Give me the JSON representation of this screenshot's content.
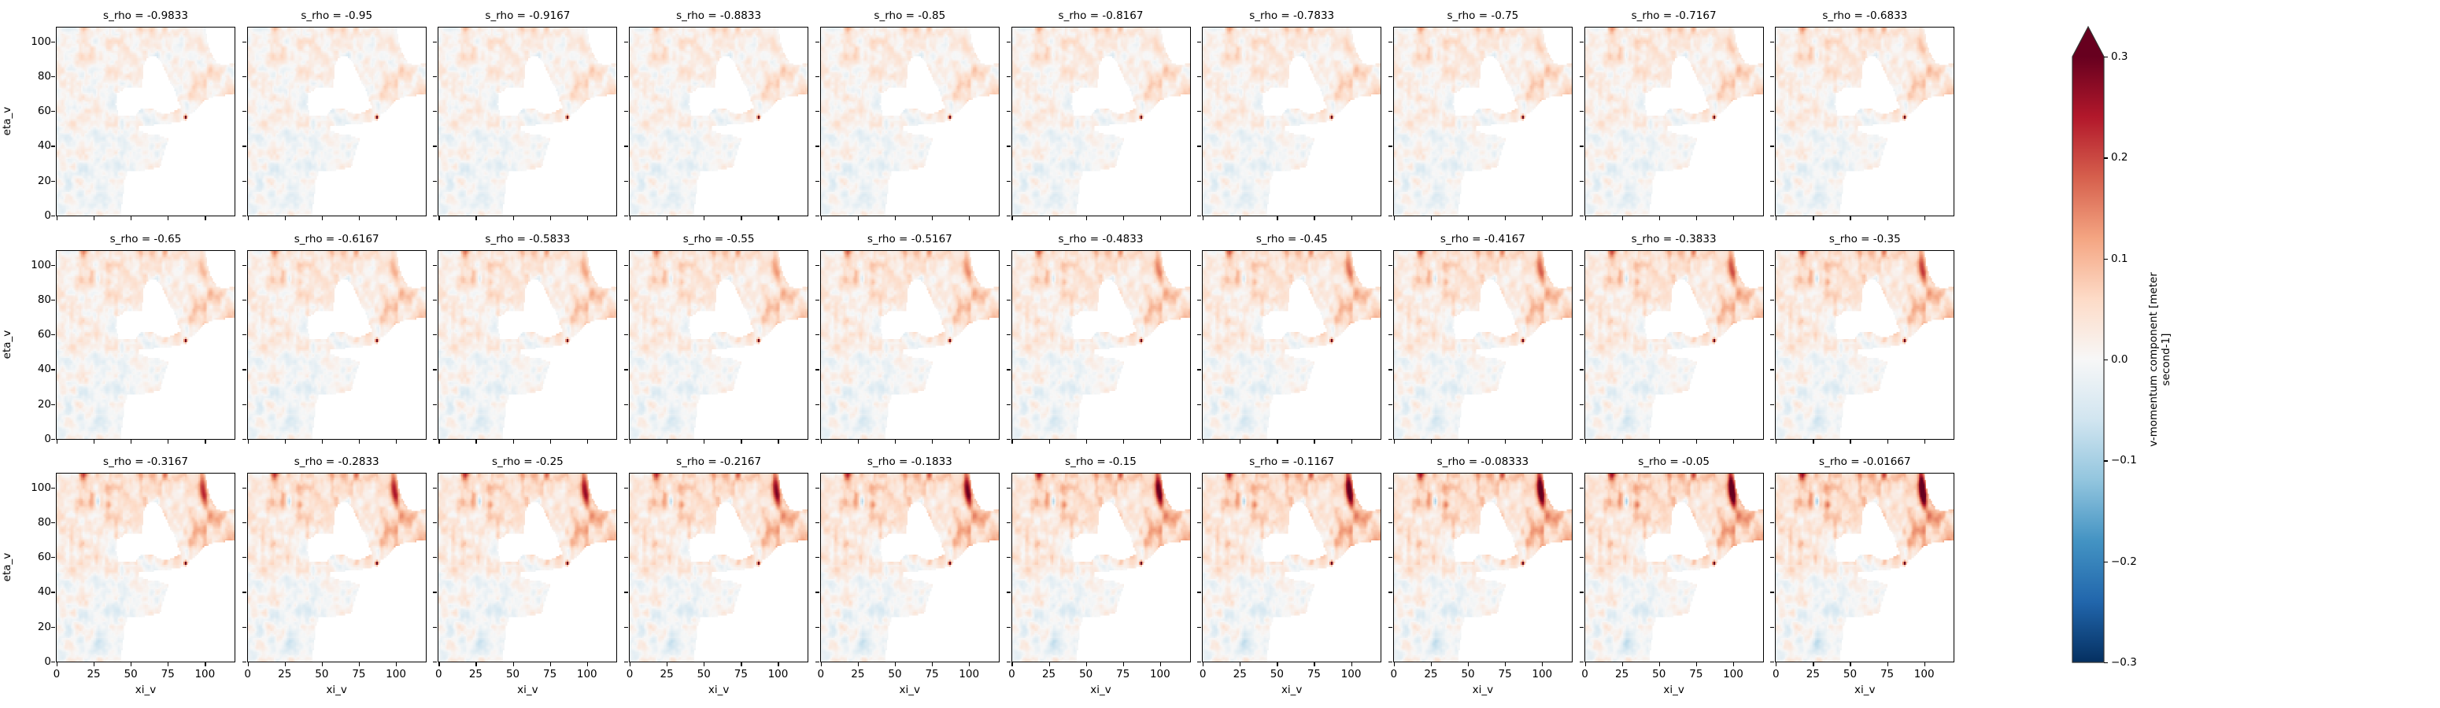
{
  "chart_data": {
    "type": "heatmap",
    "layout": "facet-grid",
    "rows": 3,
    "cols": 10,
    "facet_variable": "s_rho",
    "titles": [
      "s_rho = -0.9833",
      "s_rho = -0.95",
      "s_rho = -0.9167",
      "s_rho = -0.8833",
      "s_rho = -0.85",
      "s_rho = -0.8167",
      "s_rho = -0.7833",
      "s_rho = -0.75",
      "s_rho = -0.7167",
      "s_rho = -0.6833",
      "s_rho = -0.65",
      "s_rho = -0.6167",
      "s_rho = -0.5833",
      "s_rho = -0.55",
      "s_rho = -0.5167",
      "s_rho = -0.4833",
      "s_rho = -0.45",
      "s_rho = -0.4167",
      "s_rho = -0.3833",
      "s_rho = -0.35",
      "s_rho = -0.3167",
      "s_rho = -0.2833",
      "s_rho = -0.25",
      "s_rho = -0.2167",
      "s_rho = -0.1833",
      "s_rho = -0.15",
      "s_rho = -0.1167",
      "s_rho = -0.08333",
      "s_rho = -0.05",
      "s_rho = -0.01667"
    ],
    "s_rho_values": [
      -0.9833,
      -0.95,
      -0.9167,
      -0.8833,
      -0.85,
      -0.8167,
      -0.7833,
      -0.75,
      -0.7167,
      -0.6833,
      -0.65,
      -0.6167,
      -0.5833,
      -0.55,
      -0.5167,
      -0.4833,
      -0.45,
      -0.4167,
      -0.3833,
      -0.35,
      -0.3167,
      -0.2833,
      -0.25,
      -0.2167,
      -0.1833,
      -0.15,
      -0.1167,
      -0.08333,
      -0.05,
      -0.01667
    ],
    "xlabel": "xi_v",
    "ylabel": "eta_v",
    "xlim": [
      -0.5,
      120.5
    ],
    "ylim": [
      -0.5,
      108.5
    ],
    "xticks": [
      0,
      25,
      50,
      75,
      100
    ],
    "xtick_labels": [
      "0",
      "25",
      "50",
      "75",
      "100"
    ],
    "yticks": [
      0,
      20,
      40,
      60,
      80,
      100
    ],
    "ytick_labels": [
      "0",
      "20",
      "40",
      "60",
      "80",
      "100"
    ],
    "colorbar": {
      "label_line1": "v-momentum component [meter",
      "label_line2": "second-1]",
      "vmin": -0.3,
      "vmax": 0.3,
      "extend": "max",
      "ticks": [
        0.3,
        0.2,
        0.1,
        0.0,
        -0.1,
        -0.2,
        -0.3
      ],
      "tick_labels": [
        "0.3",
        "0.2",
        "0.1",
        "0.0",
        "−0.1",
        "−0.2",
        "−0.3"
      ],
      "colormap": "RdBu_r",
      "colors": [
        "#053061",
        "#2166ac",
        "#4393c3",
        "#92c5de",
        "#d1e5f0",
        "#f7f7f7",
        "#fddbc7",
        "#f4a582",
        "#d6604d",
        "#b2182b",
        "#67001f"
      ]
    },
    "grid": false,
    "legend": "none"
  }
}
